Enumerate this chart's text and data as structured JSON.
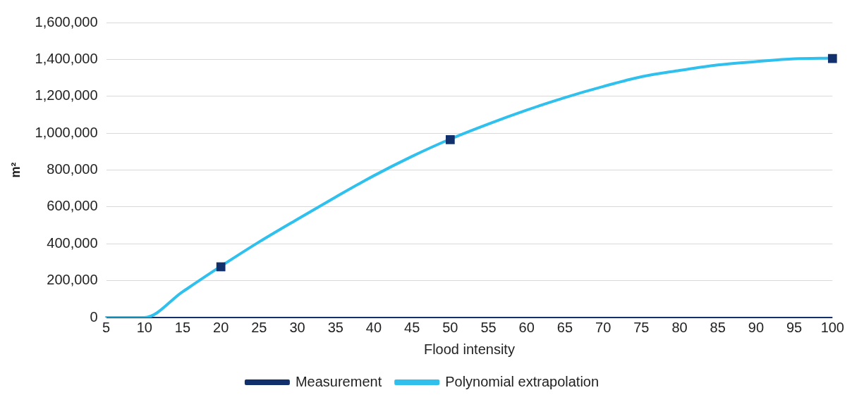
{
  "chart_data": {
    "type": "line",
    "xlabel": "Flood intensity",
    "ylabel": "m²",
    "categories": [
      "5",
      "10",
      "15",
      "20",
      "25",
      "30",
      "35",
      "40",
      "45",
      "50",
      "55",
      "60",
      "65",
      "70",
      "75",
      "80",
      "85",
      "90",
      "95",
      "100"
    ],
    "series": [
      {
        "name": "Measurement",
        "type": "scatter",
        "color": "#12306b",
        "marker": "square",
        "values": [
          null,
          null,
          null,
          275000,
          null,
          null,
          null,
          null,
          null,
          965000,
          null,
          null,
          null,
          null,
          null,
          null,
          null,
          null,
          null,
          1405000
        ]
      },
      {
        "name": "Polynomial extrapolation",
        "color": "#30c0ee",
        "marker": "none",
        "line_style": "solid",
        "values": [
          0,
          0,
          140000,
          278000,
          410000,
          533000,
          653000,
          769000,
          874000,
          968000,
          1050000,
          1125000,
          1193000,
          1253000,
          1306000,
          1340000,
          1370000,
          1388000,
          1403000,
          1407000
        ]
      }
    ],
    "ylim": [
      0,
      1600000
    ],
    "yticks": [
      {
        "value": 0,
        "label": "0"
      },
      {
        "value": 200000,
        "label": "200,000"
      },
      {
        "value": 400000,
        "label": "400,000"
      },
      {
        "value": 600000,
        "label": "600,000"
      },
      {
        "value": 800000,
        "label": "800,000"
      },
      {
        "value": 1000000,
        "label": "1,000,000"
      },
      {
        "value": 1200000,
        "label": "1,200,000"
      },
      {
        "value": 1400000,
        "label": "1,400,000"
      },
      {
        "value": 1600000,
        "label": "1,600,000"
      }
    ],
    "grid": "y",
    "legend": "bottom"
  }
}
